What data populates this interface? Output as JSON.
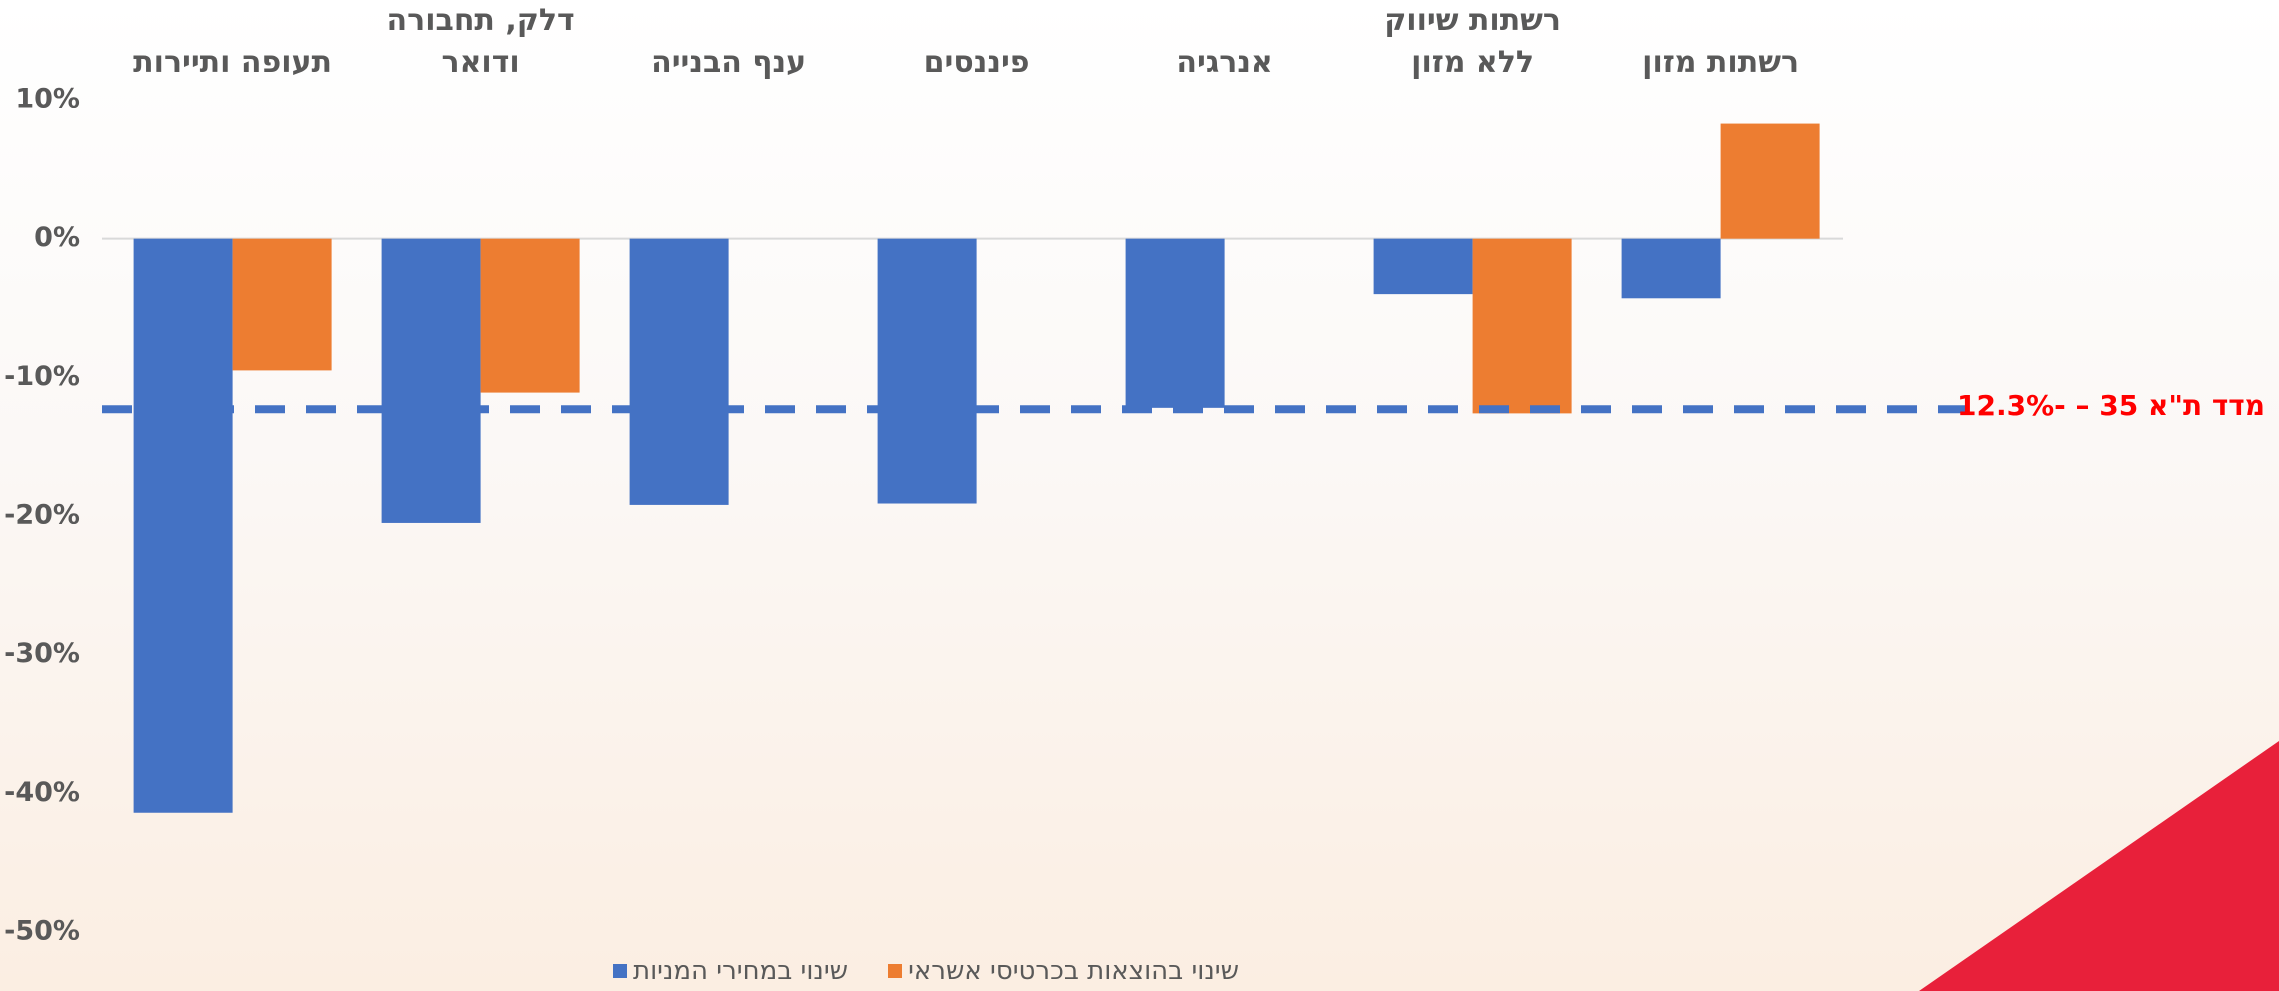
{
  "chart_data": {
    "type": "bar",
    "categories": [
      "תעופה ותיירות",
      "דלק, תחבורה ודואר",
      "ענף הבנייה",
      "פיננסים",
      "אנרגיה",
      "רשתות שיווק ללא מזון",
      "רשתות מזון"
    ],
    "series": [
      {
        "name": "שינוי במחירי המניות",
        "color": "#4472c4",
        "values": [
          -41.4,
          -20.5,
          -19.2,
          -19.1,
          -12.2,
          -4.0,
          -4.3
        ]
      },
      {
        "name": "שינוי בהוצאות בכרטיסי אשראי",
        "color": "#ed7d31",
        "values": [
          -9.5,
          -11.1,
          null,
          null,
          null,
          -12.6,
          8.3
        ]
      }
    ],
    "ylim": [
      -50,
      10
    ],
    "yticks": [
      {
        "value": 10,
        "label": "10%"
      },
      {
        "value": 0,
        "label": "0%"
      },
      {
        "value": -10,
        "label": "-10%"
      },
      {
        "value": -20,
        "label": "-20%"
      },
      {
        "value": -30,
        "label": "-30%"
      },
      {
        "value": -40,
        "label": "-40%"
      },
      {
        "value": -50,
        "label": "-50%"
      }
    ],
    "grid": false,
    "legend": "bottom",
    "reference_line": {
      "value": -12.3,
      "label": "מדד ת\"א 35 – -12.3%",
      "color": "#4472c4"
    }
  }
}
